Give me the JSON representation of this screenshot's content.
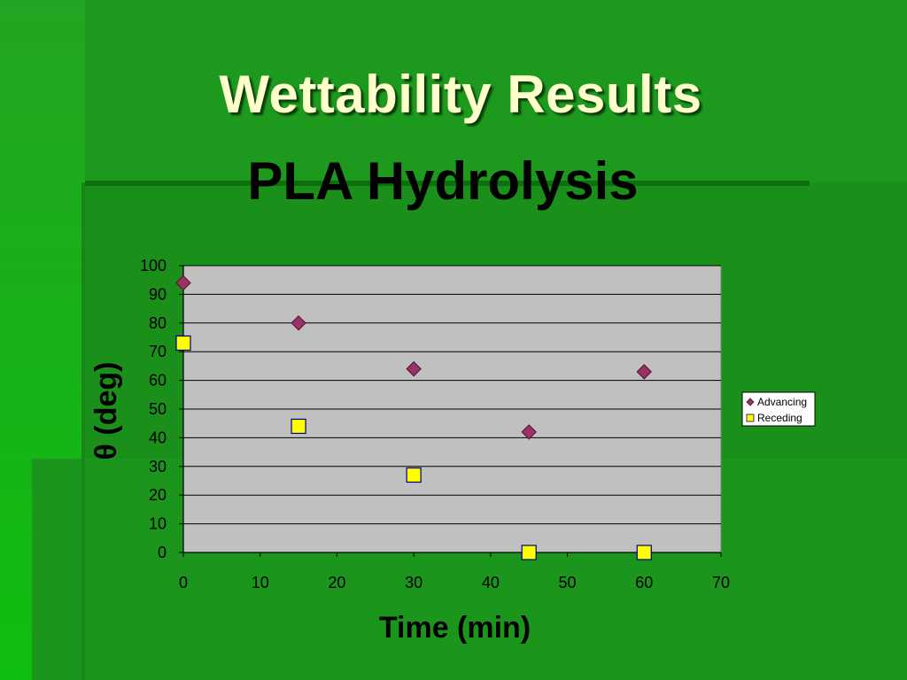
{
  "slide": {
    "title": "Wettability Results"
  },
  "colors": {
    "background": "#1d9a1d",
    "plot_area": "#c0c0c0",
    "advancing": "#993366",
    "receding": "#ffff00",
    "title_text": "#ffffcc"
  },
  "chart_data": {
    "type": "scatter",
    "title": "PLA Hydrolysis",
    "xlabel": "Time (min)",
    "ylabel": "θ (deg)",
    "xlim": [
      0,
      70
    ],
    "ylim": [
      0,
      100
    ],
    "xticks": [
      0,
      10,
      20,
      30,
      40,
      50,
      60,
      70
    ],
    "yticks": [
      0,
      10,
      20,
      30,
      40,
      50,
      60,
      70,
      80,
      90,
      100
    ],
    "grid": "horizontal",
    "legend_position": "right",
    "series": [
      {
        "name": "Advancing",
        "marker": "diamond",
        "x": [
          0,
          15,
          30,
          45,
          60
        ],
        "y": [
          94,
          80,
          64,
          42,
          63
        ]
      },
      {
        "name": "Receding",
        "marker": "square",
        "x": [
          0,
          15,
          30,
          45,
          60
        ],
        "y": [
          73,
          44,
          27,
          0,
          0
        ]
      }
    ]
  }
}
